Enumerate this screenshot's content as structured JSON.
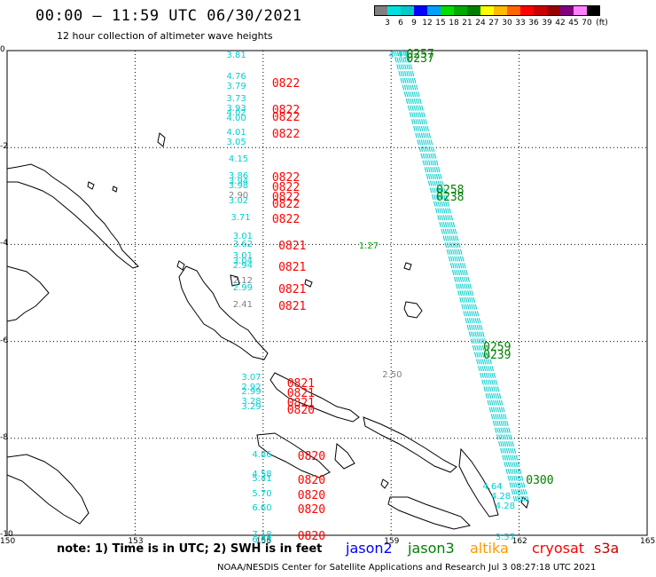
{
  "header": {
    "title": "00:00 – 11:59 UTC 06/30/2021",
    "subtitle": "12 hour collection of altimeter wave heights"
  },
  "colorbar": {
    "unit": "(ft)",
    "labels": [
      "3",
      "6",
      "9",
      "12",
      "15",
      "18",
      "21",
      "24",
      "27",
      "30",
      "33",
      "36",
      "39",
      "42",
      "45",
      "70"
    ],
    "colors": [
      "#808080",
      "#00e0e0",
      "#00c8c8",
      "#0000ff",
      "#00a0ff",
      "#00dd00",
      "#00aa00",
      "#008000",
      "#ffff00",
      "#ffbb00",
      "#ff6600",
      "#ff0000",
      "#cc0000",
      "#990000",
      "#800080",
      "#ff80ff",
      "#000000"
    ]
  },
  "axes": {
    "x_labels": [
      "150",
      "153",
      "156",
      "159",
      "162",
      "165"
    ],
    "y_labels": [
      "0",
      "-2",
      "-4",
      "-6",
      "-8",
      "-10"
    ]
  },
  "note": "note: 1) Time is in UTC; 2) SWH is in feet",
  "legend": [
    {
      "name": "jason2",
      "color": "#0000ff"
    },
    {
      "name": "jason3",
      "color": "#008000"
    },
    {
      "name": "altika",
      "color": "#ff9900"
    },
    {
      "name": "cryosat",
      "color": "#ff0000"
    },
    {
      "name": "s3a",
      "color": "#cc0000"
    }
  ],
  "footer": "NOAA/NESDIS Center for Satellite Applications and Research   Jul  3 08:27:18 UTC 2021",
  "track_values": [
    {
      "lon": 155.35,
      "lat": -0.05,
      "text": "3.81",
      "color": "#00d0d0"
    },
    {
      "lon": 155.35,
      "lat": -0.5,
      "text": "4.76",
      "color": "#00d0d0"
    },
    {
      "lon": 155.35,
      "lat": -0.7,
      "text": "3.79",
      "color": "#00d0d0"
    },
    {
      "lon": 155.35,
      "lat": -0.95,
      "text": "3.73",
      "color": "#00d0d0"
    },
    {
      "lon": 155.35,
      "lat": -1.15,
      "text": "3.93",
      "color": "#00d0d0"
    },
    {
      "lon": 155.35,
      "lat": -1.25,
      "text": "4.02",
      "color": "#00d0d0"
    },
    {
      "lon": 155.35,
      "lat": -1.35,
      "text": "4.00",
      "color": "#00d0d0"
    },
    {
      "lon": 155.35,
      "lat": -1.65,
      "text": "4.01",
      "color": "#00d0d0"
    },
    {
      "lon": 155.35,
      "lat": -1.85,
      "text": "3.05",
      "color": "#00d0d0"
    },
    {
      "lon": 155.4,
      "lat": -2.2,
      "text": "4.15",
      "color": "#00d0d0"
    },
    {
      "lon": 155.4,
      "lat": -2.55,
      "text": "3.86",
      "color": "#00d0d0"
    },
    {
      "lon": 155.4,
      "lat": -2.65,
      "text": "3.94",
      "color": "#00d0d0"
    },
    {
      "lon": 155.4,
      "lat": -2.75,
      "text": "3.98",
      "color": "#00d0d0"
    },
    {
      "lon": 155.4,
      "lat": -2.95,
      "text": "2.90",
      "color": "#808080"
    },
    {
      "lon": 155.4,
      "lat": -3.05,
      "text": "3.02",
      "color": "#00d0d0"
    },
    {
      "lon": 155.45,
      "lat": -3.4,
      "text": "3.71",
      "color": "#00d0d0"
    },
    {
      "lon": 155.5,
      "lat": -3.8,
      "text": "3.01",
      "color": "#00d0d0"
    },
    {
      "lon": 155.5,
      "lat": -3.95,
      "text": "3.62",
      "color": "#00d0d0"
    },
    {
      "lon": 155.5,
      "lat": -4.2,
      "text": "3.01",
      "color": "#00d0d0"
    },
    {
      "lon": 155.5,
      "lat": -4.3,
      "text": "3.04",
      "color": "#00d0d0"
    },
    {
      "lon": 155.5,
      "lat": -4.4,
      "text": "2.94",
      "color": "#00d0d0"
    },
    {
      "lon": 155.5,
      "lat": -4.7,
      "text": "2.12",
      "color": "#808080"
    },
    {
      "lon": 155.5,
      "lat": -4.85,
      "text": "2.99",
      "color": "#00d0d0"
    },
    {
      "lon": 155.5,
      "lat": -5.2,
      "text": "2.41",
      "color": "#808080"
    },
    {
      "lon": 155.7,
      "lat": -6.7,
      "text": "3.07",
      "color": "#00d0d0"
    },
    {
      "lon": 155.7,
      "lat": -6.9,
      "text": "2.92",
      "color": "#00d0d0"
    },
    {
      "lon": 155.7,
      "lat": -7.0,
      "text": "2.99",
      "color": "#00d0d0"
    },
    {
      "lon": 155.7,
      "lat": -7.2,
      "text": "3.28",
      "color": "#00d0d0"
    },
    {
      "lon": 155.7,
      "lat": -7.3,
      "text": "3.29",
      "color": "#00d0d0"
    },
    {
      "lon": 155.95,
      "lat": -8.3,
      "text": "4.86",
      "color": "#00d0d0"
    },
    {
      "lon": 155.95,
      "lat": -8.7,
      "text": "4.58",
      "color": "#00d0d0"
    },
    {
      "lon": 155.95,
      "lat": -8.8,
      "text": "5.41",
      "color": "#00d0d0"
    },
    {
      "lon": 155.95,
      "lat": -9.1,
      "text": "5.70",
      "color": "#00d0d0"
    },
    {
      "lon": 155.95,
      "lat": -9.4,
      "text": "6.60",
      "color": "#00d0d0"
    },
    {
      "lon": 155.95,
      "lat": -9.95,
      "text": "7.18",
      "color": "#00d0d0"
    },
    {
      "lon": 155.95,
      "lat": -10.05,
      "text": "6.68",
      "color": "#00d0d0"
    },
    {
      "lon": 159.0,
      "lat": -6.65,
      "text": "2.50",
      "color": "#808080"
    },
    {
      "lon": 158.45,
      "lat": -4.0,
      "text": "1.27",
      "color": "#00aa00"
    },
    {
      "lon": 159.15,
      "lat": -0.05,
      "text": "4.49",
      "color": "#00d0d0"
    },
    {
      "lon": 161.35,
      "lat": -8.95,
      "text": "4.64",
      "color": "#00d0d0"
    },
    {
      "lon": 161.55,
      "lat": -9.15,
      "text": "4.28",
      "color": "#00d0d0"
    },
    {
      "lon": 161.65,
      "lat": -9.35,
      "text": "4.28",
      "color": "#00d0d0"
    },
    {
      "lon": 161.65,
      "lat": -10.0,
      "text": "3.57",
      "color": "#00d0d0"
    }
  ],
  "time_labels": [
    {
      "lon": 156.5,
      "lat": -0.6,
      "text": "0822",
      "color": "#ff0000"
    },
    {
      "lon": 156.5,
      "lat": -1.15,
      "text": "0822",
      "color": "#ff0000"
    },
    {
      "lon": 156.5,
      "lat": -1.3,
      "text": "0822",
      "color": "#ff0000"
    },
    {
      "lon": 156.5,
      "lat": -1.65,
      "text": "0822",
      "color": "#ff0000"
    },
    {
      "lon": 156.5,
      "lat": -2.55,
      "text": "0822",
      "color": "#ff0000"
    },
    {
      "lon": 156.5,
      "lat": -2.75,
      "text": "0822",
      "color": "#ff0000"
    },
    {
      "lon": 156.5,
      "lat": -2.95,
      "text": "0822",
      "color": "#ff0000"
    },
    {
      "lon": 156.5,
      "lat": -3.1,
      "text": "0822",
      "color": "#ff0000"
    },
    {
      "lon": 156.5,
      "lat": -3.4,
      "text": "0822",
      "color": "#ff0000"
    },
    {
      "lon": 156.65,
      "lat": -3.95,
      "text": "0821",
      "color": "#ff0000"
    },
    {
      "lon": 156.65,
      "lat": -4.4,
      "text": "0821",
      "color": "#ff0000"
    },
    {
      "lon": 156.65,
      "lat": -4.85,
      "text": "0821",
      "color": "#ff0000"
    },
    {
      "lon": 156.65,
      "lat": -5.2,
      "text": "0821",
      "color": "#ff0000"
    },
    {
      "lon": 156.85,
      "lat": -6.8,
      "text": "0821",
      "color": "#ff0000"
    },
    {
      "lon": 156.85,
      "lat": -7.0,
      "text": "0821",
      "color": "#ff0000"
    },
    {
      "lon": 156.85,
      "lat": -7.2,
      "text": "0821",
      "color": "#ff0000"
    },
    {
      "lon": 156.85,
      "lat": -7.35,
      "text": "0820",
      "color": "#ff0000"
    },
    {
      "lon": 157.1,
      "lat": -8.3,
      "text": "0820",
      "color": "#ff0000"
    },
    {
      "lon": 157.1,
      "lat": -8.8,
      "text": "0820",
      "color": "#ff0000"
    },
    {
      "lon": 157.1,
      "lat": -9.1,
      "text": "0820",
      "color": "#ff0000"
    },
    {
      "lon": 157.1,
      "lat": -9.4,
      "text": "0820",
      "color": "#ff0000"
    },
    {
      "lon": 157.1,
      "lat": -9.95,
      "text": "0820",
      "color": "#ff0000"
    },
    {
      "lon": 159.65,
      "lat": -0.0,
      "text": "0257",
      "color": "#008000"
    },
    {
      "lon": 159.65,
      "lat": -0.1,
      "text": "0237",
      "color": "#008000"
    },
    {
      "lon": 160.35,
      "lat": -2.8,
      "text": "0258",
      "color": "#008000"
    },
    {
      "lon": 160.35,
      "lat": -2.95,
      "text": "0238",
      "color": "#008000"
    },
    {
      "lon": 161.45,
      "lat": -6.05,
      "text": "0259",
      "color": "#008000"
    },
    {
      "lon": 161.45,
      "lat": -6.2,
      "text": "0239",
      "color": "#008000"
    },
    {
      "lon": 162.45,
      "lat": -8.8,
      "text": "0300",
      "color": "#008000"
    }
  ]
}
